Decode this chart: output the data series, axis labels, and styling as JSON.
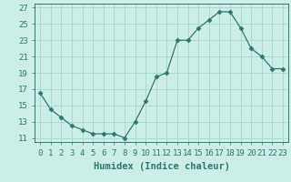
{
  "x": [
    0,
    1,
    2,
    3,
    4,
    5,
    6,
    7,
    8,
    9,
    10,
    11,
    12,
    13,
    14,
    15,
    16,
    17,
    18,
    19,
    20,
    21,
    22,
    23
  ],
  "y": [
    16.5,
    14.5,
    13.5,
    12.5,
    12.0,
    11.5,
    11.5,
    11.5,
    11.0,
    13.0,
    15.5,
    18.5,
    19.0,
    23.0,
    23.0,
    24.5,
    25.5,
    26.5,
    26.5,
    24.5,
    22.0,
    21.0,
    19.5,
    19.5
  ],
  "xlabel": "Humidex (Indice chaleur)",
  "xlim": [
    -0.5,
    23.5
  ],
  "ylim": [
    10.5,
    27.5
  ],
  "yticks": [
    11,
    13,
    15,
    17,
    19,
    21,
    23,
    25,
    27
  ],
  "xticks": [
    0,
    1,
    2,
    3,
    4,
    5,
    6,
    7,
    8,
    9,
    10,
    11,
    12,
    13,
    14,
    15,
    16,
    17,
    18,
    19,
    20,
    21,
    22,
    23
  ],
  "xtick_labels": [
    "0",
    "1",
    "2",
    "3",
    "4",
    "5",
    "6",
    "7",
    "8",
    "9",
    "10",
    "11",
    "12",
    "13",
    "14",
    "15",
    "16",
    "17",
    "18",
    "19",
    "20",
    "21",
    "22",
    "23"
  ],
  "line_color": "#2d7a6a",
  "marker": "D",
  "marker_size": 2.5,
  "bg_color": "#cceee8",
  "grid_color": "#aad4cc",
  "fig_bg_color": "#cceee8",
  "tick_color": "#2d7a6a",
  "label_fontsize": 6.5,
  "xlabel_fontsize": 7.5
}
